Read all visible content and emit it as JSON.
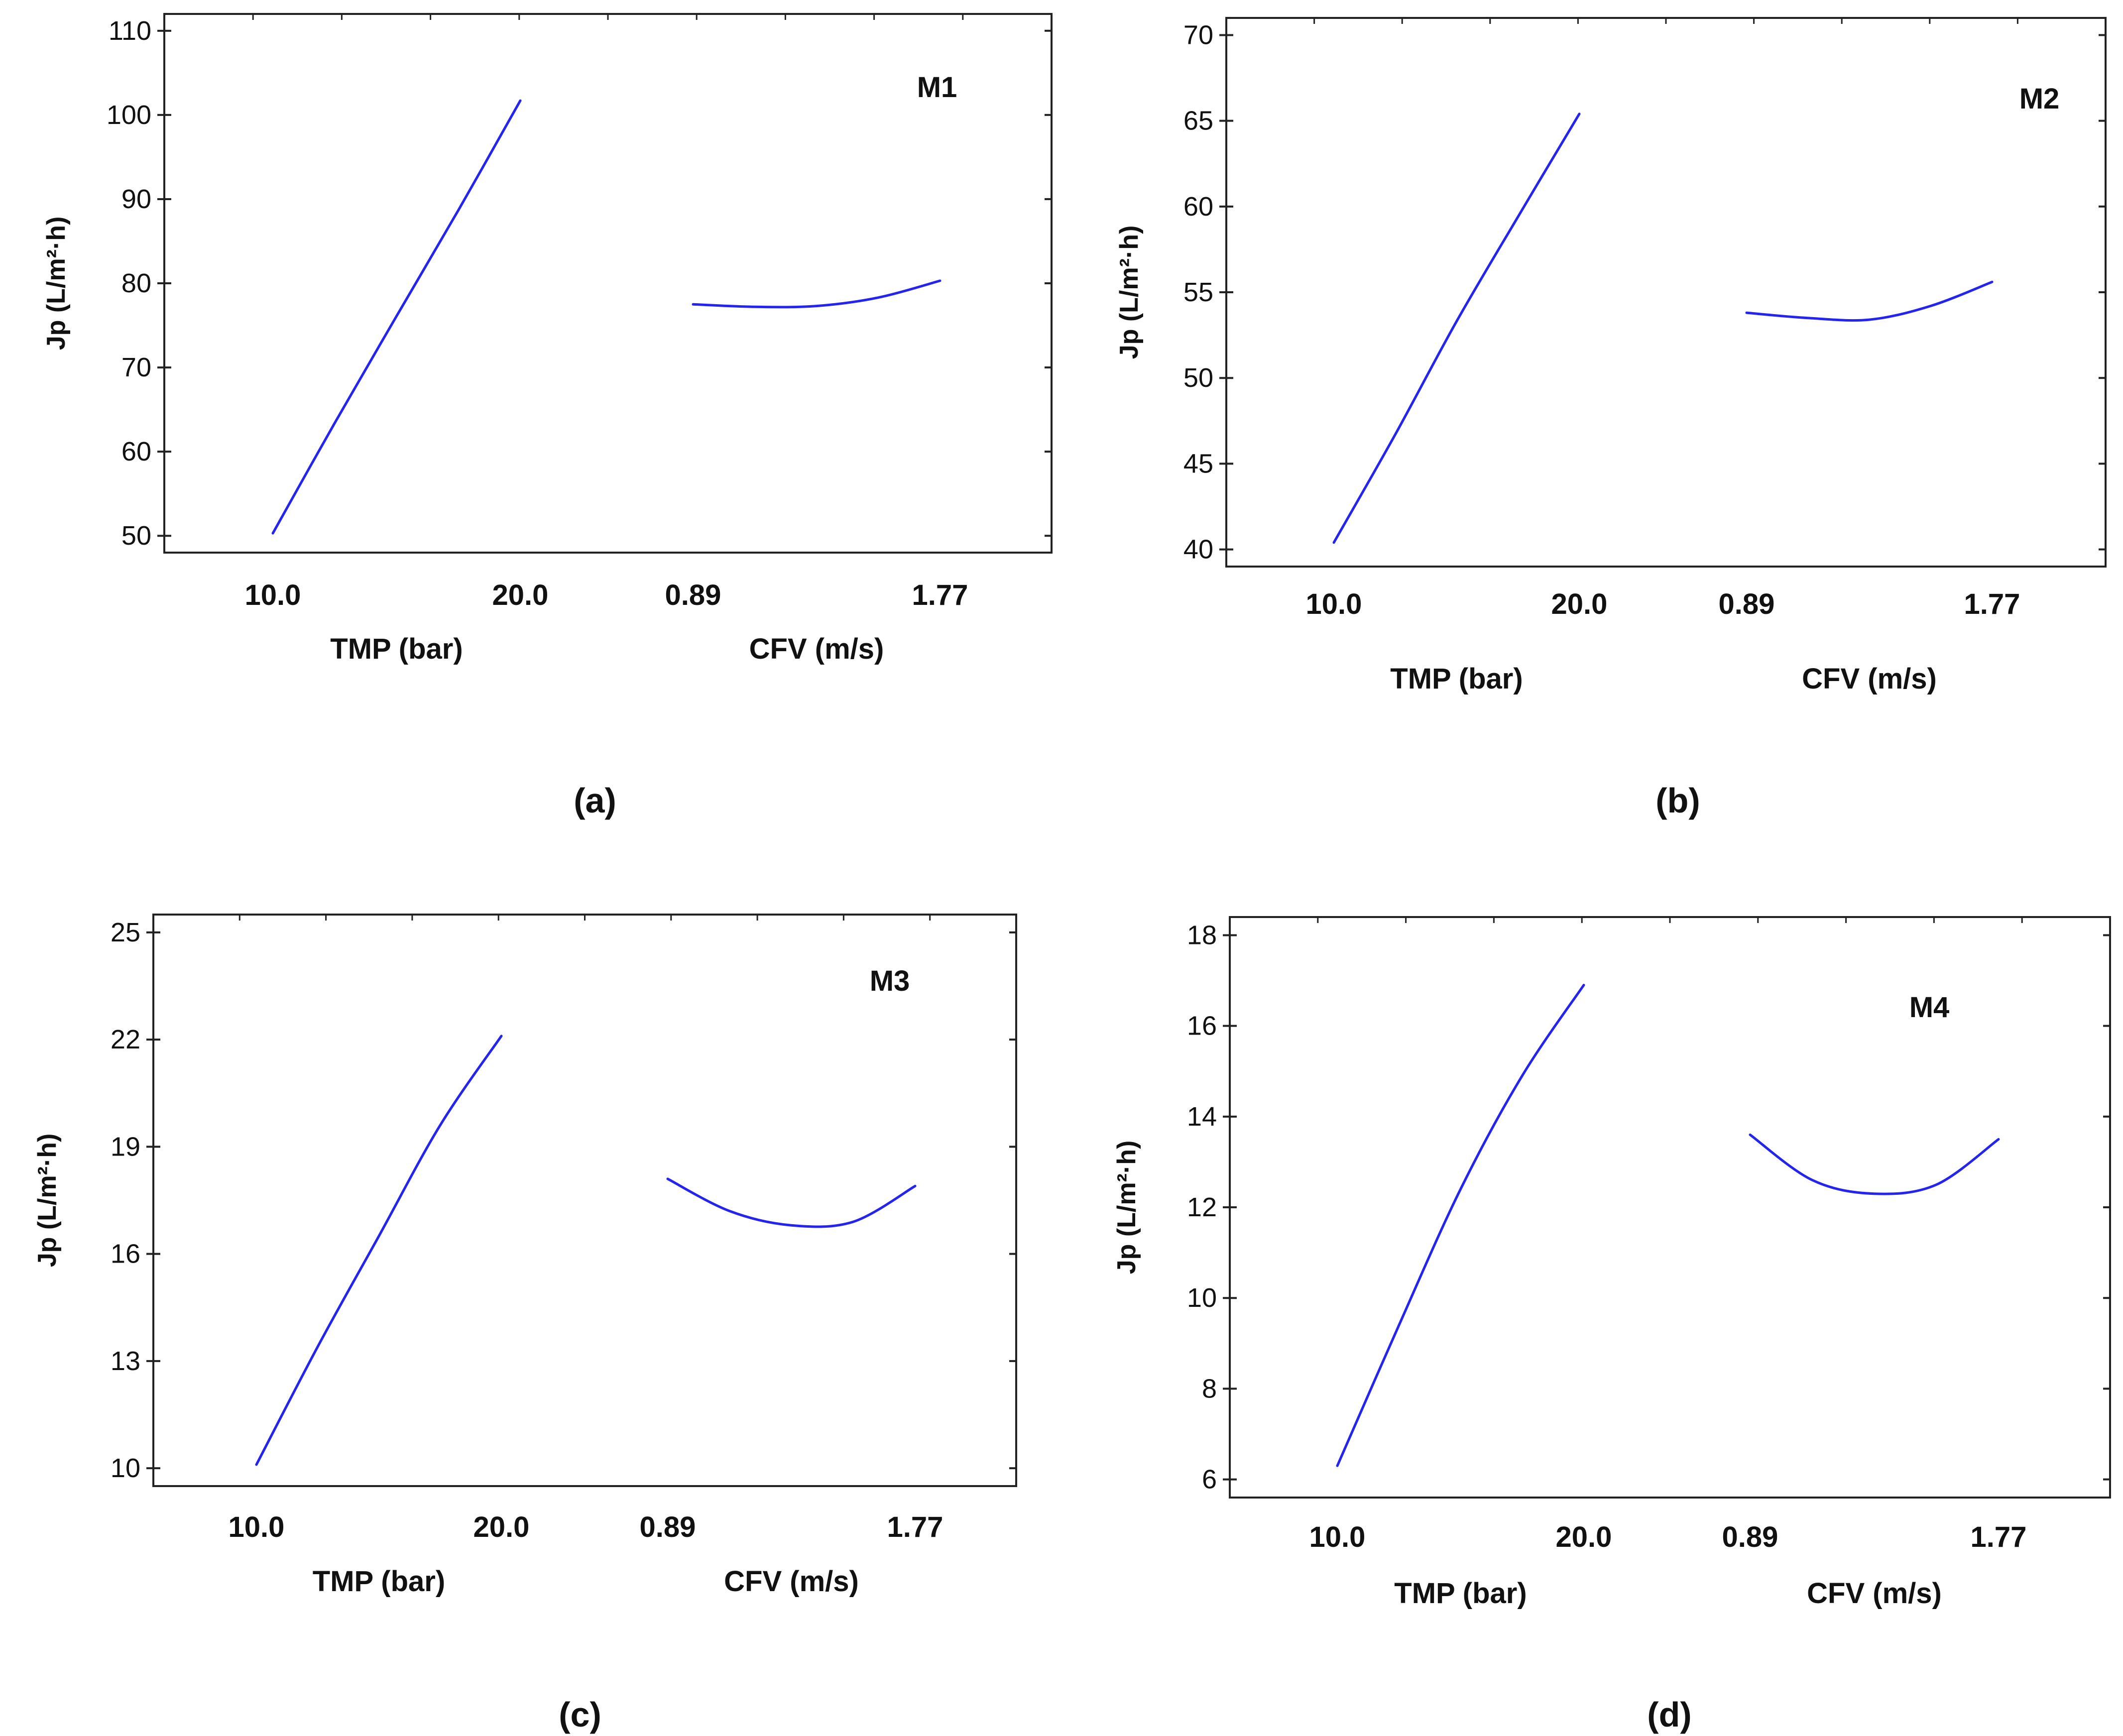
{
  "chart_data": [
    {
      "type": "line",
      "panel_label": "(a)",
      "model": "M1",
      "ylabel": "Jp (L/m²·h)",
      "ylim": [
        48,
        112
      ],
      "yticks": [
        "50",
        "60",
        "70",
        "80",
        "90",
        "100",
        "110"
      ],
      "factors": [
        {
          "name": "TMP (bar)",
          "low": "10.0",
          "high": "20.0",
          "curve": [
            [
              0,
              50.3
            ],
            [
              0.25,
              63.4
            ],
            [
              0.5,
              76.1
            ],
            [
              0.75,
              88.7
            ],
            [
              1,
              101.7
            ]
          ]
        },
        {
          "name": "CFV (m/s)",
          "low": "0.89",
          "high": "1.77",
          "curve": [
            [
              0,
              77.5
            ],
            [
              0.25,
              77.2
            ],
            [
              0.5,
              77.3
            ],
            [
              0.75,
              78.3
            ],
            [
              1,
              80.3
            ]
          ]
        }
      ],
      "colors": {
        "line": "#2424f0"
      }
    },
    {
      "type": "line",
      "panel_label": "(b)",
      "model": "M2",
      "ylabel": "Jp (L/m²·h)",
      "ylim": [
        39,
        71
      ],
      "yticks": [
        "40",
        "45",
        "50",
        "55",
        "60",
        "65",
        "70"
      ],
      "factors": [
        {
          "name": "TMP (bar)",
          "low": "10.0",
          "high": "20.0",
          "curve": [
            [
              0,
              40.4
            ],
            [
              0.25,
              46.7
            ],
            [
              0.5,
              53.3
            ],
            [
              0.75,
              59.4
            ],
            [
              1,
              65.4
            ]
          ]
        },
        {
          "name": "CFV (m/s)",
          "low": "0.89",
          "high": "1.77",
          "curve": [
            [
              0,
              53.8
            ],
            [
              0.25,
              53.5
            ],
            [
              0.5,
              53.4
            ],
            [
              0.75,
              54.2
            ],
            [
              1,
              55.6
            ]
          ]
        }
      ],
      "colors": {
        "line": "#2424f0"
      }
    },
    {
      "type": "line",
      "panel_label": "(c)",
      "model": "M3",
      "ylabel": "Jp (L/m²·h)",
      "ylim": [
        9.5,
        25.5
      ],
      "yticks": [
        "10",
        "13",
        "16",
        "19",
        "22",
        "25"
      ],
      "factors": [
        {
          "name": "TMP (bar)",
          "low": "10.0",
          "high": "20.0",
          "curve": [
            [
              0,
              10.1
            ],
            [
              0.25,
              13.4
            ],
            [
              0.5,
              16.5
            ],
            [
              0.75,
              19.6
            ],
            [
              1,
              22.1
            ]
          ]
        },
        {
          "name": "CFV (m/s)",
          "low": "0.89",
          "high": "1.77",
          "curve": [
            [
              0,
              18.1
            ],
            [
              0.25,
              17.2
            ],
            [
              0.5,
              16.8
            ],
            [
              0.75,
              16.9
            ],
            [
              1,
              17.9
            ]
          ]
        }
      ],
      "colors": {
        "line": "#2424f0"
      }
    },
    {
      "type": "line",
      "panel_label": "(d)",
      "model": "M4",
      "ylabel": "Jp (L/m²·h)",
      "ylim": [
        5.6,
        18.4
      ],
      "yticks": [
        "6",
        "8",
        "10",
        "12",
        "14",
        "16",
        "18"
      ],
      "factors": [
        {
          "name": "TMP (bar)",
          "low": "10.0",
          "high": "20.0",
          "curve": [
            [
              0,
              6.3
            ],
            [
              0.25,
              9.4
            ],
            [
              0.5,
              12.4
            ],
            [
              0.75,
              14.9
            ],
            [
              1,
              16.9
            ]
          ]
        },
        {
          "name": "CFV (m/s)",
          "low": "0.89",
          "high": "1.77",
          "curve": [
            [
              0,
              13.6
            ],
            [
              0.25,
              12.6
            ],
            [
              0.5,
              12.3
            ],
            [
              0.75,
              12.5
            ],
            [
              1,
              13.5
            ]
          ]
        }
      ],
      "colors": {
        "line": "#2424f0"
      }
    }
  ]
}
